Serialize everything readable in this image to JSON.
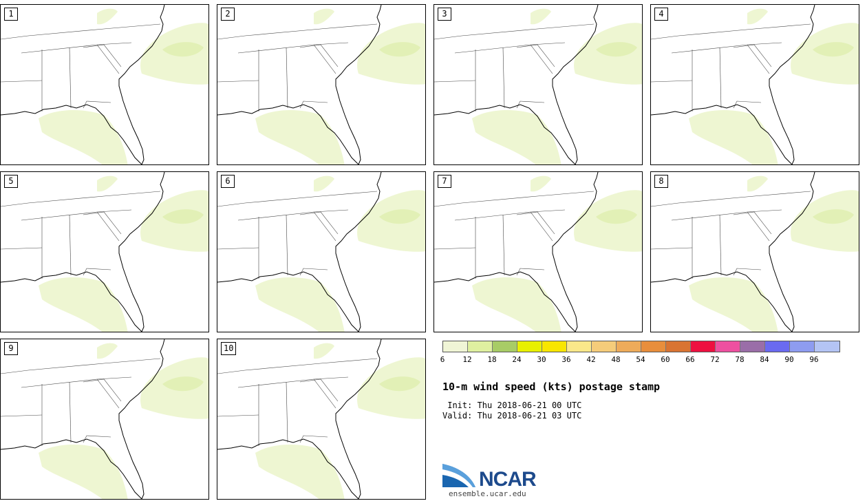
{
  "members": [
    "1",
    "2",
    "3",
    "4",
    "5",
    "6",
    "7",
    "8",
    "9",
    "10"
  ],
  "colorbar": {
    "ticks": [
      "6",
      "12",
      "18",
      "24",
      "30",
      "36",
      "42",
      "48",
      "54",
      "60",
      "66",
      "72",
      "78",
      "84",
      "90",
      "96"
    ],
    "colors": [
      "#f0f5d6",
      "#dff0a0",
      "#a8cc66",
      "#e8f000",
      "#f8e600",
      "#fae88a",
      "#f5cc7a",
      "#eeab5a",
      "#e88e3c",
      "#d97432",
      "#ee1040",
      "#ee50a0",
      "#9a6ea8",
      "#6a6af0",
      "#8e9cf0",
      "#b4c4f4"
    ]
  },
  "title": "10-m wind speed (kts) postage stamp",
  "init": " Init: Thu 2018-06-21 00 UTC",
  "valid": "Valid: Thu 2018-06-21 03 UTC",
  "logo": {
    "text": "NCAR",
    "url": "ensemble.ucar.edu"
  }
}
